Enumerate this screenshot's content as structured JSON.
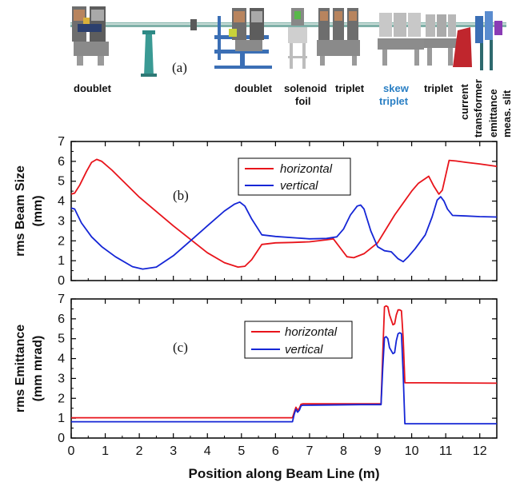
{
  "beamline": {
    "panel_label": "(a)",
    "components": [
      {
        "text": "doublet",
        "highlight": false
      },
      {
        "text": "doublet",
        "highlight": false
      },
      {
        "text": "solenoid",
        "highlight": false
      },
      {
        "text": "foil",
        "highlight": false
      },
      {
        "text": "triplet",
        "highlight": false
      },
      {
        "text": "skew",
        "highlight": true
      },
      {
        "text": "triplet",
        "highlight": true
      },
      {
        "text": "triplet",
        "highlight": false
      },
      {
        "text": "current",
        "highlight": false
      },
      {
        "text": "transformer",
        "highlight": false
      },
      {
        "text": "emittance",
        "highlight": false
      },
      {
        "text": "meas. slit",
        "highlight": false
      }
    ]
  },
  "colors": {
    "horizontal": "#e8141b",
    "vertical": "#1526d6"
  },
  "x_axis": {
    "label": "Position along Beam Line (m)",
    "ticks": [
      "0",
      "1",
      "2",
      "3",
      "4",
      "5",
      "6",
      "7",
      "8",
      "9",
      "10",
      "11",
      "12"
    ]
  },
  "chart_data": [
    {
      "type": "line",
      "panel_label": "(b)",
      "ylabel_line1": "rms Beam Size",
      "ylabel_line2": "(mm)",
      "xlim": [
        0,
        12.5
      ],
      "ylim": [
        0,
        7
      ],
      "yticks": [
        "0",
        "1",
        "2",
        "3",
        "4",
        "5",
        "6",
        "7"
      ],
      "legend_position": "upper-center",
      "series": [
        {
          "name": "horizontal",
          "x": [
            0,
            0.1,
            0.25,
            0.45,
            0.6,
            0.75,
            0.9,
            1.2,
            2.0,
            3.0,
            4.0,
            4.5,
            4.9,
            5.1,
            5.3,
            5.6,
            6.0,
            6.5,
            7.0,
            7.5,
            7.7,
            7.9,
            8.1,
            8.3,
            8.6,
            9.0,
            9.5,
            10.0,
            10.2,
            10.5,
            10.65,
            10.8,
            10.9,
            11.1,
            11.3,
            11.6,
            12.0,
            12.5
          ],
          "values": [
            4.35,
            4.4,
            4.8,
            5.5,
            5.95,
            6.1,
            6.0,
            5.55,
            4.2,
            2.75,
            1.4,
            0.9,
            0.68,
            0.72,
            1.05,
            1.82,
            1.9,
            1.92,
            1.95,
            2.05,
            2.1,
            1.65,
            1.2,
            1.15,
            1.35,
            1.9,
            3.3,
            4.5,
            4.9,
            5.25,
            4.75,
            4.35,
            4.55,
            6.05,
            6.02,
            5.95,
            5.87,
            5.75
          ]
        },
        {
          "name": "vertical",
          "x": [
            0,
            0.1,
            0.3,
            0.6,
            0.9,
            1.3,
            1.8,
            2.1,
            2.5,
            3.0,
            3.5,
            4.0,
            4.5,
            4.8,
            4.95,
            5.1,
            5.3,
            5.6,
            6.0,
            6.6,
            7.0,
            7.5,
            7.8,
            8.0,
            8.2,
            8.4,
            8.5,
            8.6,
            8.8,
            9.0,
            9.2,
            9.4,
            9.6,
            9.75,
            9.9,
            10.1,
            10.4,
            10.6,
            10.75,
            10.85,
            10.95,
            11.05,
            11.2,
            11.6,
            12.0,
            12.5
          ],
          "values": [
            3.65,
            3.6,
            2.9,
            2.2,
            1.7,
            1.2,
            0.7,
            0.58,
            0.68,
            1.25,
            2.0,
            2.75,
            3.5,
            3.85,
            3.95,
            3.75,
            3.1,
            2.3,
            2.22,
            2.15,
            2.1,
            2.12,
            2.2,
            2.6,
            3.3,
            3.75,
            3.8,
            3.6,
            2.5,
            1.7,
            1.5,
            1.45,
            1.1,
            0.95,
            1.2,
            1.6,
            2.3,
            3.2,
            4.05,
            4.22,
            4.0,
            3.6,
            3.28,
            3.25,
            3.22,
            3.2
          ]
        }
      ]
    },
    {
      "type": "line",
      "panel_label": "(c)",
      "ylabel_line1": "rms Emittance",
      "ylabel_line2": "(mm mrad)",
      "xlim": [
        0,
        12.5
      ],
      "ylim": [
        0,
        7
      ],
      "yticks": [
        "0",
        "1",
        "2",
        "3",
        "4",
        "5",
        "6",
        "7"
      ],
      "legend_position": "upper-center",
      "series": [
        {
          "name": "horizontal",
          "x": [
            0,
            6.5,
            6.55,
            6.6,
            6.65,
            6.7,
            6.75,
            6.8,
            7.5,
            8.5,
            9.1,
            9.15,
            9.2,
            9.25,
            9.3,
            9.35,
            9.45,
            9.5,
            9.55,
            9.6,
            9.65,
            9.7,
            9.75,
            9.8,
            9.82,
            10.5,
            11.5,
            12.5
          ],
          "values": [
            1.02,
            1.02,
            1.3,
            1.55,
            1.4,
            1.5,
            1.7,
            1.72,
            1.72,
            1.72,
            1.72,
            4.2,
            6.6,
            6.65,
            6.6,
            6.2,
            5.7,
            5.75,
            6.2,
            6.45,
            6.45,
            6.4,
            5.0,
            2.78,
            2.78,
            2.78,
            2.77,
            2.76
          ]
        },
        {
          "name": "vertical",
          "x": [
            0,
            6.5,
            6.55,
            6.6,
            6.65,
            6.7,
            6.75,
            6.8,
            7.5,
            8.5,
            9.1,
            9.15,
            9.2,
            9.25,
            9.3,
            9.35,
            9.45,
            9.5,
            9.55,
            9.6,
            9.65,
            9.7,
            9.75,
            9.8,
            9.82,
            10.5,
            11.5,
            12.5
          ],
          "values": [
            0.82,
            0.82,
            1.2,
            1.45,
            1.3,
            1.4,
            1.62,
            1.65,
            1.66,
            1.68,
            1.68,
            3.5,
            5.05,
            5.1,
            5.0,
            4.55,
            4.25,
            4.3,
            4.9,
            5.25,
            5.3,
            5.25,
            3.2,
            0.72,
            0.72,
            0.72,
            0.72,
            0.72
          ]
        }
      ]
    }
  ]
}
